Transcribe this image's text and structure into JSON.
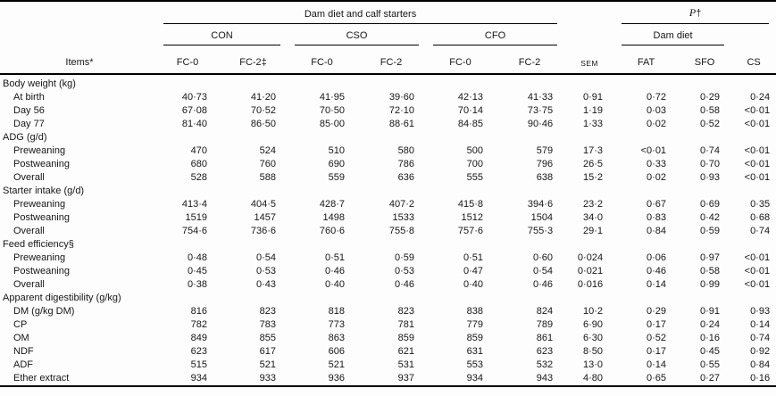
{
  "page": {
    "background_color": "#fdfdfd",
    "text_color": "#161616",
    "rule_color": "#000000"
  },
  "table": {
    "header": {
      "top_span_label": "Dam diet and calf starters",
      "p_label": "P",
      "p_dagger": "†",
      "diet_groups": [
        "CON",
        "CSO",
        "CFO"
      ],
      "dam_diet_label": "Dam diet",
      "items_label": "Items*",
      "fc_labels": [
        "FC-0",
        "FC-2‡",
        "FC-0",
        "FC-2",
        "FC-0",
        "FC-2"
      ],
      "sem_label": "SEM",
      "p_sub_labels": [
        "FAT",
        "SFO",
        "CS"
      ]
    },
    "sections": [
      {
        "label": "Body weight (kg)",
        "rows": [
          {
            "label": "At birth",
            "values": [
              "40·73",
              "41·20",
              "41·95",
              "39·60",
              "42·13",
              "41·33",
              "0·91",
              "0·72",
              "0·29",
              "0·24"
            ]
          },
          {
            "label": "Day 56",
            "values": [
              "67·08",
              "70·52",
              "70·50",
              "72·10",
              "70·14",
              "73·75",
              "1·19",
              "0·03",
              "0·58",
              "<0·01"
            ]
          },
          {
            "label": "Day 77",
            "values": [
              "81·40",
              "86·50",
              "85·00",
              "88·61",
              "84·85",
              "90·46",
              "1·33",
              "0·02",
              "0·52",
              "<0·01"
            ]
          }
        ]
      },
      {
        "label": "ADG (g/d)",
        "rows": [
          {
            "label": "Preweaning",
            "values": [
              "470",
              "524",
              "510",
              "580",
              "500",
              "579",
              "17·3",
              "<0·01",
              "0·74",
              "<0·01"
            ]
          },
          {
            "label": "Postweaning",
            "values": [
              "680",
              "760",
              "690",
              "786",
              "700",
              "796",
              "26·5",
              "0·33",
              "0·70",
              "<0·01"
            ]
          },
          {
            "label": "Overall",
            "values": [
              "528",
              "588",
              "559",
              "636",
              "555",
              "638",
              "15·2",
              "0·02",
              "0·93",
              "<0·01"
            ]
          }
        ]
      },
      {
        "label": "Starter intake (g/d)",
        "rows": [
          {
            "label": "Preweaning",
            "values": [
              "413·4",
              "404·5",
              "428·7",
              "407·2",
              "415·8",
              "394·6",
              "23·2",
              "0·67",
              "0·69",
              "0·35"
            ]
          },
          {
            "label": "Postweaning",
            "values": [
              "1519",
              "1457",
              "1498",
              "1533",
              "1512",
              "1504",
              "34·0",
              "0·83",
              "0·42",
              "0·68"
            ]
          },
          {
            "label": "Overall",
            "values": [
              "754·6",
              "736·6",
              "760·6",
              "755·8",
              "757·6",
              "755·3",
              "29·1",
              "0·84",
              "0·59",
              "0·74"
            ]
          }
        ]
      },
      {
        "label": "Feed efficiency§",
        "rows": [
          {
            "label": "Preweaning",
            "values": [
              "0·48",
              "0·54",
              "0·51",
              "0·59",
              "0·51",
              "0·60",
              "0·024",
              "0·06",
              "0·97",
              "<0·01"
            ]
          },
          {
            "label": "Postweaning",
            "values": [
              "0·45",
              "0·53",
              "0·46",
              "0·53",
              "0·47",
              "0·54",
              "0·021",
              "0·46",
              "0·58",
              "<0·01"
            ]
          },
          {
            "label": "Overall",
            "values": [
              "0·38",
              "0·43",
              "0·40",
              "0·46",
              "0·40",
              "0·46",
              "0·016",
              "0·14",
              "0·99",
              "<0·01"
            ]
          }
        ]
      },
      {
        "label": "Apparent digestibility (g/kg)",
        "rows": [
          {
            "label": "DM (g/kg DM)",
            "values": [
              "816",
              "823",
              "818",
              "823",
              "838",
              "824",
              "10·2",
              "0·29",
              "0·91",
              "0·93"
            ]
          },
          {
            "label": "CP",
            "values": [
              "782",
              "783",
              "773",
              "781",
              "779",
              "789",
              "6·90",
              "0·17",
              "0·24",
              "0·14"
            ]
          },
          {
            "label": "OM",
            "values": [
              "849",
              "855",
              "863",
              "859",
              "859",
              "861",
              "6·30",
              "0·52",
              "0·16",
              "0·74"
            ]
          },
          {
            "label": "NDF",
            "values": [
              "623",
              "617",
              "606",
              "621",
              "631",
              "623",
              "8·50",
              "0·17",
              "0·45",
              "0·92"
            ]
          },
          {
            "label": "ADF",
            "values": [
              "515",
              "521",
              "521",
              "531",
              "553",
              "532",
              "13·0",
              "0·14",
              "0·55",
              "0·84"
            ]
          },
          {
            "label": "Ether extract",
            "values": [
              "934",
              "933",
              "936",
              "937",
              "934",
              "943",
              "4·80",
              "0·65",
              "0·27",
              "0·16"
            ]
          }
        ]
      }
    ]
  }
}
